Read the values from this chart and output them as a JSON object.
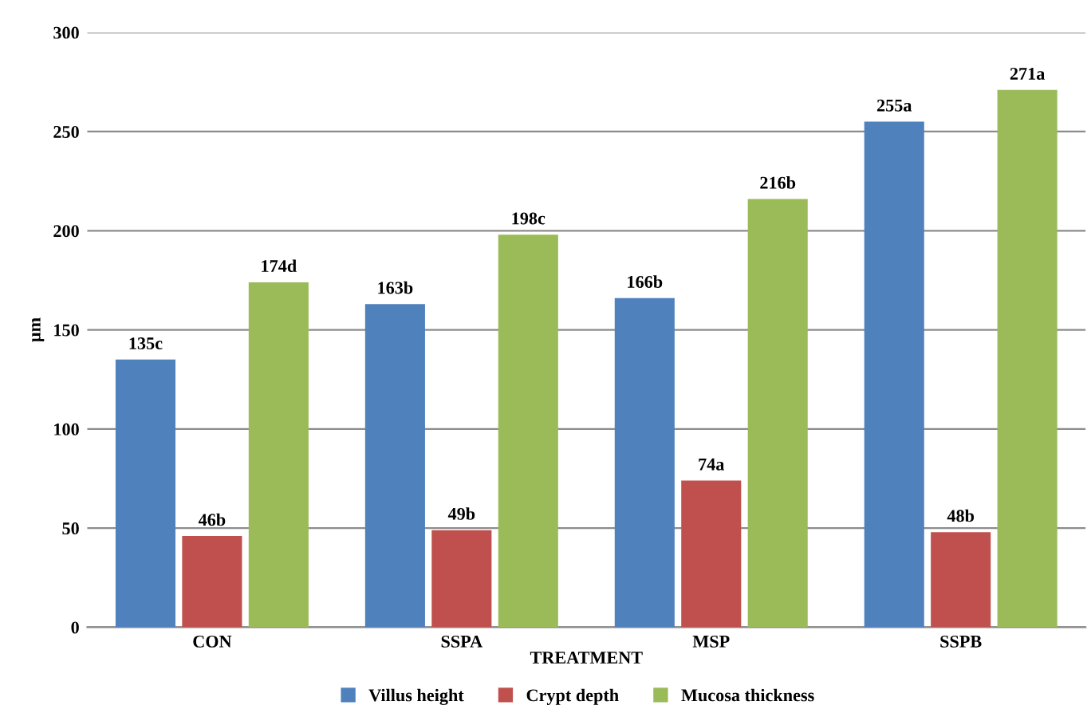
{
  "chart_data": {
    "type": "bar",
    "xlabel": "TREATMENT",
    "ylabel": "µm",
    "categories": [
      "CON",
      "SSPA",
      "MSP",
      "SSPB"
    ],
    "series": [
      {
        "name": "Villus height",
        "color": "#4f81bd",
        "values": [
          135,
          163,
          166,
          255
        ],
        "value_labels": [
          "135c",
          "163b",
          "166b",
          "255a"
        ]
      },
      {
        "name": "Crypt depth",
        "color": "#c0504d",
        "values": [
          46,
          49,
          74,
          48
        ],
        "value_labels": [
          "46b",
          "49b",
          "74a",
          "48b"
        ]
      },
      {
        "name": "Mucosa thickness",
        "color": "#9bbb59",
        "values": [
          174,
          198,
          216,
          271
        ],
        "value_labels": [
          "174d",
          "198c",
          "216b",
          "271a"
        ]
      }
    ],
    "ylim": [
      0,
      300
    ],
    "yticks": [
      0,
      50,
      100,
      150,
      200,
      250,
      300
    ],
    "grid": "y",
    "legend": "bottom"
  }
}
